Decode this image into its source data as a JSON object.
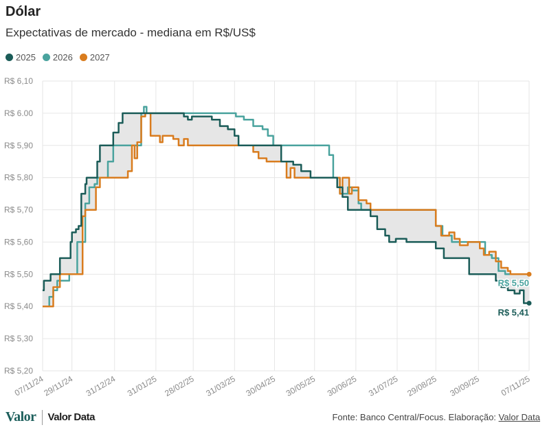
{
  "header": {
    "title": "Dólar",
    "subtitle": "Expectativas de mercado - mediana em R$/US$"
  },
  "legend": [
    {
      "label": "2025",
      "color": "#1b5c58"
    },
    {
      "label": "2026",
      "color": "#4aa39e"
    },
    {
      "label": "2027",
      "color": "#d97c1e"
    }
  ],
  "footer": {
    "logo_main": "Valor",
    "logo_secondary": "Valor Data",
    "source_text": "Fonte: Banco Central/Focus. Elaboração: ",
    "source_link": "Valor Data"
  },
  "chart_data": {
    "type": "line",
    "title": "",
    "xlabel": "",
    "ylabel": "",
    "ylim": [
      5.2,
      6.1
    ],
    "yticks": [
      5.2,
      5.3,
      5.4,
      5.5,
      5.6,
      5.7,
      5.8,
      5.9,
      6.0,
      6.1
    ],
    "ytick_labels": [
      "R$ 5,20",
      "R$ 5,30",
      "R$ 5,40",
      "R$ 5,50",
      "R$ 5,60",
      "R$ 5,70",
      "R$ 5,80",
      "R$ 5,90",
      "R$ 6.00",
      "R$ 6,10"
    ],
    "xlim": [
      "2024-11-07",
      "2025-11-07"
    ],
    "xticks": [
      "2024-11-07",
      "2024-11-29",
      "2024-12-31",
      "2025-01-31",
      "2025-02-28",
      "2025-03-31",
      "2025-04-30",
      "2025-05-30",
      "2025-06-30",
      "2025-07-31",
      "2025-08-29",
      "2025-09-30",
      "2025-11-07"
    ],
    "xtick_labels": [
      "07/11/24",
      "29/11/24",
      "31/12/24",
      "31/01/25",
      "28/02/25",
      "31/03/25",
      "30/04/25",
      "30/05/25",
      "30/06/25",
      "31/07/25",
      "29/08/25",
      "30/09/25",
      "07/11/25"
    ],
    "grid": true,
    "band_between": [
      "2025",
      "2027"
    ],
    "end_labels": [
      {
        "series": "2026",
        "text": "R$ 5,50"
      },
      {
        "series": "2025",
        "text": "R$ 5,41"
      }
    ],
    "series": [
      {
        "name": "2025",
        "color": "#1b5c58",
        "points": [
          [
            "2024-11-07",
            5.45
          ],
          [
            "2024-11-08",
            5.48
          ],
          [
            "2024-11-12",
            5.48
          ],
          [
            "2024-11-13",
            5.5
          ],
          [
            "2024-11-18",
            5.5
          ],
          [
            "2024-11-20",
            5.55
          ],
          [
            "2024-11-25",
            5.55
          ],
          [
            "2024-11-28",
            5.6
          ],
          [
            "2024-11-29",
            5.63
          ],
          [
            "2024-12-02",
            5.64
          ],
          [
            "2024-12-04",
            5.65
          ],
          [
            "2024-12-06",
            5.75
          ],
          [
            "2024-12-09",
            5.78
          ],
          [
            "2024-12-10",
            5.8
          ],
          [
            "2024-12-16",
            5.8
          ],
          [
            "2024-12-18",
            5.85
          ],
          [
            "2024-12-20",
            5.9
          ],
          [
            "2024-12-26",
            5.9
          ],
          [
            "2024-12-30",
            5.94
          ],
          [
            "2025-01-03",
            5.97
          ],
          [
            "2025-01-06",
            6.0
          ],
          [
            "2025-01-16",
            6.0
          ],
          [
            "2025-02-20",
            6.0
          ],
          [
            "2025-02-21",
            5.99
          ],
          [
            "2025-02-24",
            5.98
          ],
          [
            "2025-02-27",
            5.99
          ],
          [
            "2025-03-04",
            5.99
          ],
          [
            "2025-03-10",
            5.99
          ],
          [
            "2025-03-14",
            5.98
          ],
          [
            "2025-03-20",
            5.96
          ],
          [
            "2025-03-26",
            5.95
          ],
          [
            "2025-03-31",
            5.93
          ],
          [
            "2025-04-03",
            5.9
          ],
          [
            "2025-04-25",
            5.9
          ],
          [
            "2025-05-05",
            5.85
          ],
          [
            "2025-05-14",
            5.84
          ],
          [
            "2025-05-20",
            5.82
          ],
          [
            "2025-05-27",
            5.8
          ],
          [
            "2025-06-12",
            5.8
          ],
          [
            "2025-06-16",
            5.77
          ],
          [
            "2025-06-20",
            5.74
          ],
          [
            "2025-06-24",
            5.7
          ],
          [
            "2025-07-08",
            5.7
          ],
          [
            "2025-07-11",
            5.68
          ],
          [
            "2025-07-16",
            5.64
          ],
          [
            "2025-07-22",
            5.62
          ],
          [
            "2025-07-25",
            5.6
          ],
          [
            "2025-07-30",
            5.61
          ],
          [
            "2025-08-07",
            5.6
          ],
          [
            "2025-08-22",
            5.6
          ],
          [
            "2025-08-29",
            5.58
          ],
          [
            "2025-09-04",
            5.55
          ],
          [
            "2025-09-18",
            5.55
          ],
          [
            "2025-09-23",
            5.5
          ],
          [
            "2025-10-10",
            5.5
          ],
          [
            "2025-10-13",
            5.48
          ],
          [
            "2025-10-17",
            5.46
          ],
          [
            "2025-10-22",
            5.45
          ],
          [
            "2025-10-27",
            5.44
          ],
          [
            "2025-10-31",
            5.45
          ],
          [
            "2025-11-03",
            5.41
          ],
          [
            "2025-11-07",
            5.41
          ]
        ]
      },
      {
        "name": "2026",
        "color": "#4aa39e",
        "points": [
          [
            "2024-11-07",
            5.4
          ],
          [
            "2024-11-12",
            5.43
          ],
          [
            "2024-11-15",
            5.45
          ],
          [
            "2024-11-18",
            5.48
          ],
          [
            "2024-11-27",
            5.5
          ],
          [
            "2024-12-03",
            5.6
          ],
          [
            "2024-12-06",
            5.6
          ],
          [
            "2024-12-09",
            5.72
          ],
          [
            "2024-12-12",
            5.77
          ],
          [
            "2024-12-16",
            5.78
          ],
          [
            "2024-12-18",
            5.8
          ],
          [
            "2024-12-23",
            5.8
          ],
          [
            "2024-12-26",
            5.85
          ],
          [
            "2024-12-30",
            5.9
          ],
          [
            "2025-01-16",
            5.9
          ],
          [
            "2025-01-20",
            6.0
          ],
          [
            "2025-01-22",
            6.02
          ],
          [
            "2025-01-24",
            6.0
          ],
          [
            "2025-03-31",
            6.0
          ],
          [
            "2025-04-01",
            5.99
          ],
          [
            "2025-04-07",
            5.98
          ],
          [
            "2025-04-14",
            5.96
          ],
          [
            "2025-04-21",
            5.95
          ],
          [
            "2025-04-25",
            5.93
          ],
          [
            "2025-04-29",
            5.9
          ],
          [
            "2025-06-06",
            5.9
          ],
          [
            "2025-06-10",
            5.87
          ],
          [
            "2025-06-13",
            5.8
          ],
          [
            "2025-06-16",
            5.8
          ],
          [
            "2025-06-18",
            5.75
          ],
          [
            "2025-06-24",
            5.77
          ],
          [
            "2025-06-27",
            5.76
          ],
          [
            "2025-07-02",
            5.72
          ],
          [
            "2025-07-04",
            5.7
          ],
          [
            "2025-08-26",
            5.7
          ],
          [
            "2025-08-29",
            5.65
          ],
          [
            "2025-09-03",
            5.62
          ],
          [
            "2025-09-10",
            5.6
          ],
          [
            "2025-10-02",
            5.6
          ],
          [
            "2025-10-05",
            5.56
          ],
          [
            "2025-10-10",
            5.55
          ],
          [
            "2025-10-15",
            5.51
          ],
          [
            "2025-10-20",
            5.5
          ],
          [
            "2025-11-07",
            5.5
          ]
        ]
      },
      {
        "name": "2027",
        "color": "#d97c1e",
        "points": [
          [
            "2024-11-07",
            5.4
          ],
          [
            "2024-11-13",
            5.4
          ],
          [
            "2024-11-15",
            5.46
          ],
          [
            "2024-11-20",
            5.5
          ],
          [
            "2024-12-05",
            5.5
          ],
          [
            "2024-12-07",
            5.68
          ],
          [
            "2024-12-09",
            5.7
          ],
          [
            "2024-12-13",
            5.7
          ],
          [
            "2024-12-17",
            5.77
          ],
          [
            "2024-12-20",
            5.8
          ],
          [
            "2025-01-06",
            5.8
          ],
          [
            "2025-01-10",
            5.82
          ],
          [
            "2025-01-13",
            5.9
          ],
          [
            "2025-01-15",
            5.86
          ],
          [
            "2025-01-17",
            5.91
          ],
          [
            "2025-01-20",
            5.99
          ],
          [
            "2025-01-23",
            6.0
          ],
          [
            "2025-01-27",
            5.93
          ],
          [
            "2025-02-03",
            5.91
          ],
          [
            "2025-02-05",
            5.93
          ],
          [
            "2025-02-13",
            5.92
          ],
          [
            "2025-02-17",
            5.9
          ],
          [
            "2025-02-21",
            5.92
          ],
          [
            "2025-02-24",
            5.9
          ],
          [
            "2025-04-10",
            5.9
          ],
          [
            "2025-04-14",
            5.88
          ],
          [
            "2025-04-18",
            5.86
          ],
          [
            "2025-04-24",
            5.85
          ],
          [
            "2025-05-07",
            5.85
          ],
          [
            "2025-05-09",
            5.8
          ],
          [
            "2025-05-12",
            5.83
          ],
          [
            "2025-05-15",
            5.8
          ],
          [
            "2025-06-16",
            5.8
          ],
          [
            "2025-06-18",
            5.75
          ],
          [
            "2025-06-20",
            5.8
          ],
          [
            "2025-06-25",
            5.75
          ],
          [
            "2025-06-27",
            5.77
          ],
          [
            "2025-07-02",
            5.73
          ],
          [
            "2025-07-08",
            5.72
          ],
          [
            "2025-07-11",
            5.7
          ],
          [
            "2025-08-27",
            5.7
          ],
          [
            "2025-08-29",
            5.65
          ],
          [
            "2025-09-02",
            5.62
          ],
          [
            "2025-09-08",
            5.63
          ],
          [
            "2025-09-12",
            5.61
          ],
          [
            "2025-09-16",
            5.59
          ],
          [
            "2025-09-22",
            5.6
          ],
          [
            "2025-10-01",
            5.58
          ],
          [
            "2025-10-04",
            5.56
          ],
          [
            "2025-10-08",
            5.57
          ],
          [
            "2025-10-13",
            5.54
          ],
          [
            "2025-10-17",
            5.52
          ],
          [
            "2025-10-22",
            5.51
          ],
          [
            "2025-10-24",
            5.5
          ],
          [
            "2025-11-07",
            5.5
          ]
        ]
      }
    ]
  }
}
